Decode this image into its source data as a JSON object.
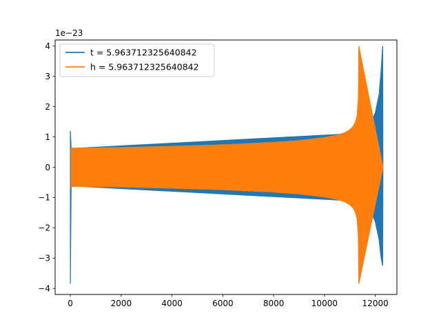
{
  "chart_data": {
    "type": "line",
    "title": "",
    "xlabel": "",
    "ylabel": "",
    "xlim": [
      -600,
      12850
    ],
    "ylim": [
      -4.2,
      4.2
    ],
    "y_offset_label": "1e−23",
    "x_ticks": [
      0,
      2000,
      4000,
      6000,
      8000,
      10000,
      12000
    ],
    "x_tick_labels": [
      "0",
      "2000",
      "4000",
      "6000",
      "8000",
      "10000",
      "12000"
    ],
    "y_ticks": [
      -4,
      -3,
      -2,
      -1,
      0,
      1,
      2,
      3,
      4
    ],
    "y_tick_labels": [
      "−4",
      "−3",
      "−2",
      "−1",
      "0",
      "1",
      "2",
      "3",
      "4"
    ],
    "legend_position": "upper-left",
    "grid": false,
    "series": [
      {
        "name": "t = 5.963712325640842",
        "color": "#1f77b4",
        "x": [
          0,
          30,
          100,
          11350,
          11380,
          11600,
          11800,
          12000,
          12150,
          12230,
          12290,
          12300
        ],
        "upper": [
          1.2,
          0.65,
          0.62,
          1.12,
          1.15,
          1.25,
          1.42,
          1.8,
          2.4,
          3.2,
          4.0,
          0
        ],
        "lower": [
          -3.85,
          -0.65,
          -0.62,
          -1.12,
          -1.15,
          -1.25,
          -1.42,
          -1.8,
          -2.4,
          -3.0,
          -3.25,
          0
        ]
      },
      {
        "name": "h = 5.963712325640842",
        "color": "#ff7f0e",
        "x": [
          30,
          100,
          2000,
          4000,
          6000,
          8000,
          9000,
          10000,
          10500,
          10800,
          11000,
          11100,
          11200,
          11280,
          11330,
          11345,
          11350,
          12300
        ],
        "upper": [
          0.65,
          0.63,
          0.65,
          0.69,
          0.74,
          0.82,
          0.88,
          0.98,
          1.06,
          1.14,
          1.24,
          1.32,
          1.45,
          1.68,
          2.2,
          3.0,
          4.0,
          0
        ],
        "lower": [
          -0.65,
          -0.63,
          -0.65,
          -0.69,
          -0.74,
          -0.82,
          -0.88,
          -0.98,
          -1.06,
          -1.14,
          -1.24,
          -1.32,
          -1.45,
          -1.68,
          -2.2,
          -3.0,
          -3.85,
          0
        ]
      }
    ]
  }
}
